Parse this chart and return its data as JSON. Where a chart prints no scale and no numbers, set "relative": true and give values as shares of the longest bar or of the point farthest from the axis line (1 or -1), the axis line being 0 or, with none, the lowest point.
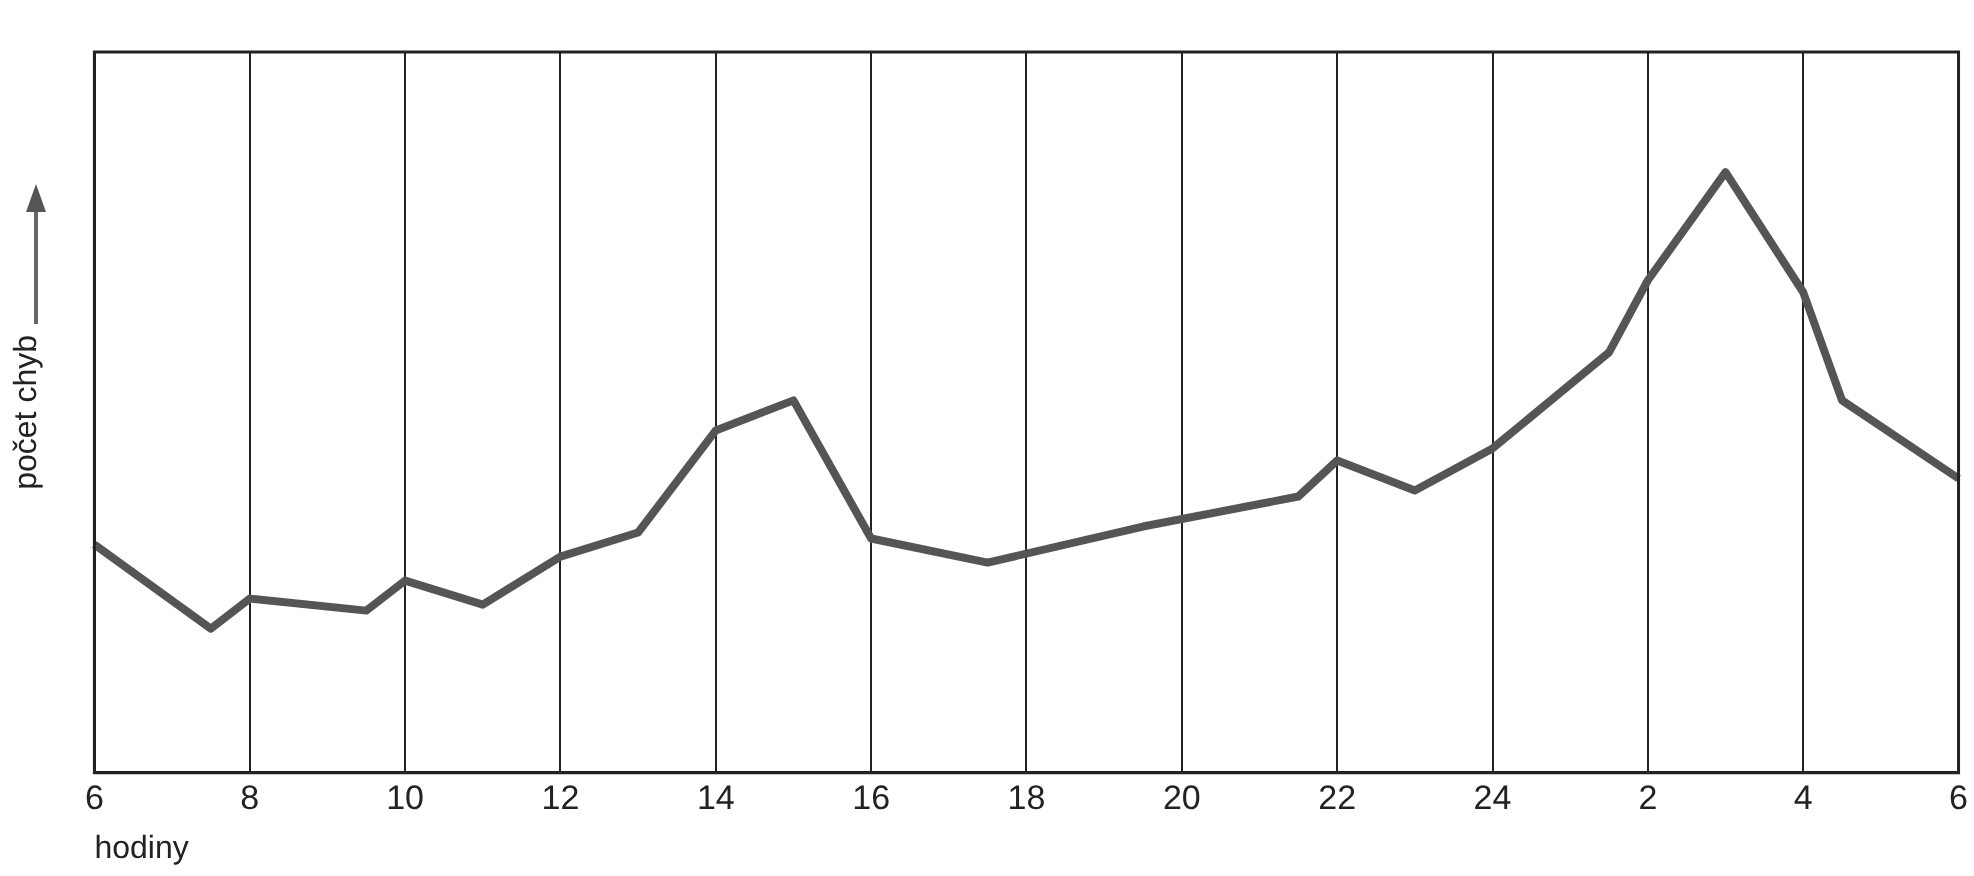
{
  "chart_data": {
    "type": "line",
    "xlabel": "hodiny",
    "ylabel": "počet chyb",
    "relative": true,
    "color": "#555555",
    "grid": "x",
    "marker": "none",
    "line_style": "solid",
    "categories": [
      "6",
      null,
      null,
      null,
      "8",
      null,
      null,
      null,
      "10",
      null,
      null,
      null,
      "12",
      null,
      null,
      null,
      "14",
      null,
      null,
      null,
      "16",
      null,
      null,
      null,
      "18",
      null,
      null,
      null,
      "20",
      null,
      null,
      null,
      "22",
      null,
      null,
      null,
      "24",
      null,
      null,
      null,
      "2",
      null,
      null,
      null,
      "4",
      null,
      null,
      null,
      "6"
    ],
    "values": [
      0.38,
      null,
      null,
      0.24,
      0.29,
      null,
      null,
      0.27,
      0.32,
      null,
      0.28,
      null,
      0.36,
      null,
      0.4,
      null,
      0.57,
      null,
      0.62,
      null,
      0.39,
      null,
      null,
      0.35,
      null,
      null,
      null,
      0.41,
      null,
      null,
      null,
      0.46,
      0.52,
      null,
      0.47,
      null,
      0.54,
      null,
      null,
      0.7,
      0.82,
      null,
      1.0,
      null,
      0.8,
      0.62,
      null,
      null,
      0.49
    ]
  }
}
